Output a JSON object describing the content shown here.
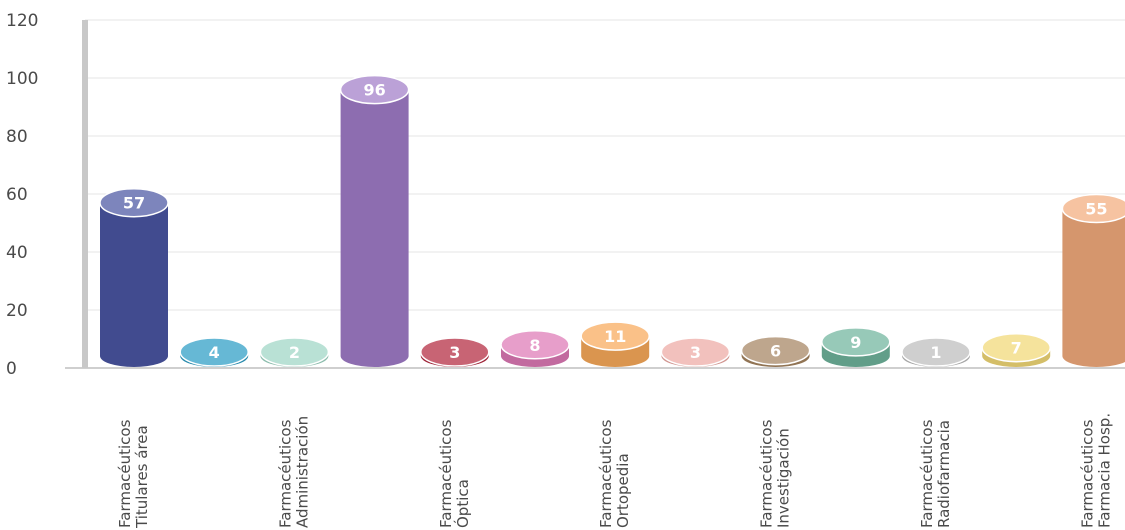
{
  "chart_data": {
    "type": "bar",
    "title": "",
    "xlabel": "",
    "ylabel": "",
    "ylim": [
      0,
      120
    ],
    "yticks": [
      0,
      20,
      40,
      60,
      80,
      100,
      120
    ],
    "grid": true,
    "legend": "none",
    "categories": [
      "Farmacéuticos Titulares área",
      "",
      "Farmacéuticos Administración",
      "",
      "Farmacéuticos Óptica",
      "",
      "Farmacéuticos Ortopedia",
      "",
      "Farmacéuticos Investigación",
      "",
      "Farmacéuticos Radiofarmacia",
      "",
      "Farmacéuticos Farmacia Hosp."
    ],
    "values": [
      57,
      4,
      2,
      96,
      3,
      8,
      11,
      3,
      6,
      9,
      1,
      7,
      55
    ],
    "colors": [
      "#4a55a2",
      "#2b9cc4",
      "#9ed6c4",
      "#a07cc8",
      "#b3283e",
      "#dd78b5",
      "#f8a95a",
      "#eda9a4",
      "#a58460",
      "#6fb49c",
      "#bdbdbd",
      "#f1d876",
      "#f2ab7c"
    ],
    "label_lines": [
      [
        "Farmacéuticos",
        "Titulares área"
      ],
      [
        "Farmacéuticos",
        "Administración"
      ],
      [
        "Farmacéuticos",
        "Óptica"
      ],
      [
        "Farmacéuticos",
        "Ortopedia"
      ],
      [
        "Farmacéuticos",
        "Investigación"
      ],
      [
        "Farmacéuticos",
        "Radiofarmacia"
      ],
      [
        "Farmacéuticos",
        "Farmacia Hosp."
      ]
    ],
    "label_category_index": [
      0,
      2,
      4,
      6,
      8,
      10,
      12
    ]
  }
}
